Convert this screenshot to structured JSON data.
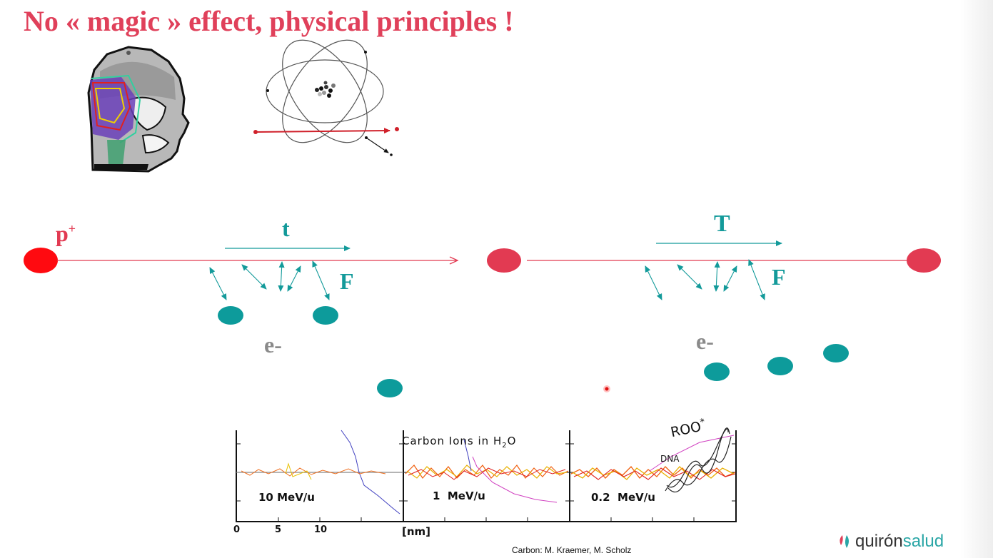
{
  "slide": {
    "title": "No « magic » effect, physical principles !",
    "colors": {
      "title": "#e0405a",
      "beam": "#e23a52",
      "teal": "#139a9a",
      "electron": "#0d9b9b",
      "grey": "#8a8a8a"
    }
  },
  "diagram_left": {
    "particle_label": "p",
    "particle_superscript": "+",
    "time_label": "t",
    "force_label": "F",
    "electron_label": "e-"
  },
  "diagram_right": {
    "time_label": "T",
    "force_label": "F",
    "electron_label": "e-"
  },
  "track_panels": {
    "heading": "Carbon Ions in H",
    "heading_subscript": "2",
    "heading_tail": "O",
    "energy_labels": [
      "10 MeV/u",
      "1  MeV/u",
      "0.2  MeV/u"
    ],
    "x_ticks": [
      "0",
      "5",
      "10"
    ],
    "x_unit": "[nm]",
    "annotation_roo": "ROO",
    "annotation_roo_sup": "*",
    "annotation_dna": "DNA"
  },
  "credit": "Carbon: M. Kraemer, M. Scholz",
  "logo": {
    "part1": "quirón",
    "part2": "salud"
  }
}
